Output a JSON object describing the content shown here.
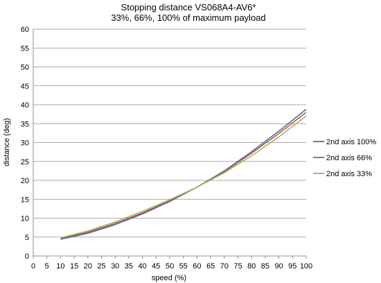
{
  "chart_data": {
    "type": "line",
    "title": "Stopping distance VS068A4-AV6*",
    "subtitle": "33%, 66%, 100% of maximum payload",
    "xlabel": "speed (%)",
    "ylabel": "distance (deg)",
    "xlim": [
      0,
      100
    ],
    "ylim": [
      0,
      60
    ],
    "xticks": [
      0,
      5,
      10,
      15,
      20,
      25,
      30,
      35,
      40,
      45,
      50,
      55,
      60,
      65,
      70,
      75,
      80,
      85,
      90,
      95,
      100
    ],
    "yticks": [
      0,
      5,
      10,
      15,
      20,
      25,
      30,
      35,
      40,
      45,
      50,
      55,
      60
    ],
    "grid": "horizontal",
    "legend": "right",
    "x": [
      10,
      20,
      30,
      40,
      50,
      60,
      70,
      80,
      90,
      100
    ],
    "series": [
      {
        "name": "2nd axis 100%",
        "color": "#4a6fa5",
        "values": [
          4.4,
          6.0,
          8.3,
          11.1,
          14.4,
          18.2,
          22.5,
          27.6,
          33.0,
          38.8
        ]
      },
      {
        "name": "2nd axis 66%",
        "color": "#c0504d",
        "values": [
          4.6,
          6.3,
          8.6,
          11.4,
          14.6,
          18.2,
          22.3,
          27.2,
          32.4,
          38.0
        ]
      },
      {
        "name": "2nd axis 33%",
        "color": "#9bbb59",
        "values": [
          4.8,
          6.6,
          9.0,
          11.8,
          14.9,
          18.2,
          22.0,
          26.5,
          31.5,
          37.0
        ]
      }
    ]
  }
}
